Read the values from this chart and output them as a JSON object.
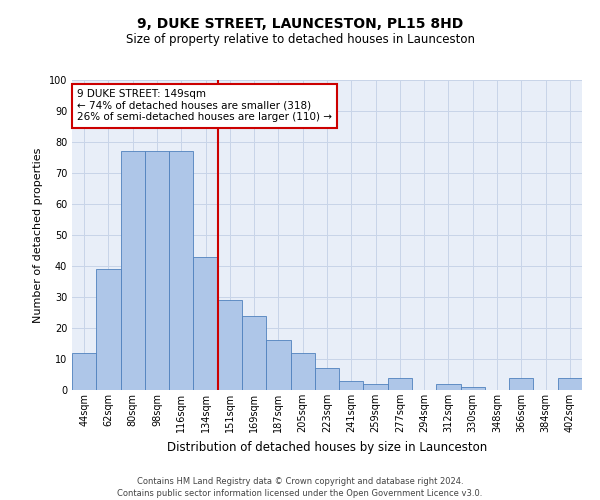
{
  "title": "9, DUKE STREET, LAUNCESTON, PL15 8HD",
  "subtitle": "Size of property relative to detached houses in Launceston",
  "xlabel": "Distribution of detached houses by size in Launceston",
  "ylabel": "Number of detached properties",
  "categories": [
    "44sqm",
    "62sqm",
    "80sqm",
    "98sqm",
    "116sqm",
    "134sqm",
    "151sqm",
    "169sqm",
    "187sqm",
    "205sqm",
    "223sqm",
    "241sqm",
    "259sqm",
    "277sqm",
    "294sqm",
    "312sqm",
    "330sqm",
    "348sqm",
    "366sqm",
    "384sqm",
    "402sqm"
  ],
  "values": [
    12,
    39,
    77,
    77,
    77,
    43,
    29,
    24,
    16,
    12,
    7,
    3,
    2,
    4,
    0,
    2,
    1,
    0,
    4,
    0,
    4
  ],
  "bar_color": "#aec6e8",
  "bar_edge_color": "#4f81bd",
  "vline_color": "#cc0000",
  "vline_index": 6,
  "annotation_text": "9 DUKE STREET: 149sqm\n← 74% of detached houses are smaller (318)\n26% of semi-detached houses are larger (110) →",
  "annotation_box_edge_color": "#cc0000",
  "footer1": "Contains HM Land Registry data © Crown copyright and database right 2024.",
  "footer2": "Contains public sector information licensed under the Open Government Licence v3.0.",
  "bg_color": "#ffffff",
  "plot_bg_color": "#e8eef8",
  "grid_color": "#c8d4e8",
  "title_fontsize": 10,
  "subtitle_fontsize": 8.5,
  "tick_fontsize": 7,
  "xlabel_fontsize": 8.5,
  "ylabel_fontsize": 8,
  "annotation_fontsize": 7.5,
  "footer_fontsize": 6,
  "ylim": [
    0,
    100
  ],
  "yticks": [
    0,
    10,
    20,
    30,
    40,
    50,
    60,
    70,
    80,
    90,
    100
  ]
}
